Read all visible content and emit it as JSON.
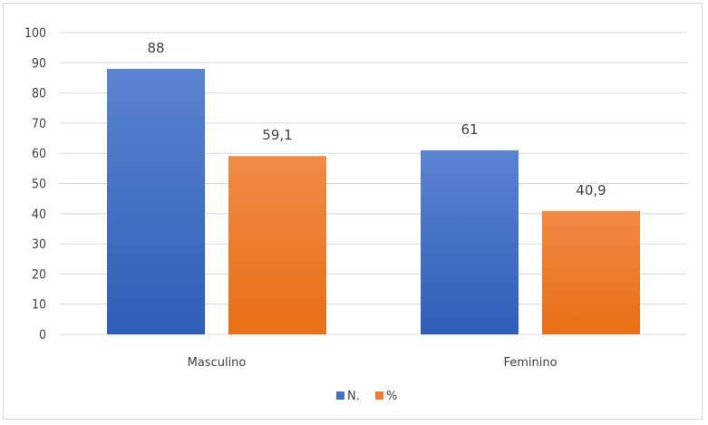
{
  "chart_data": {
    "type": "bar",
    "categories": [
      "Masculino",
      "Feminino"
    ],
    "series": [
      {
        "name": "N.",
        "values": [
          88,
          61
        ],
        "labels": [
          "88",
          "61"
        ],
        "color": "#4472c4"
      },
      {
        "name": "%",
        "values": [
          59.1,
          40.9
        ],
        "labels": [
          "59,1",
          "40,9"
        ],
        "color": "#ed7d31"
      }
    ],
    "yticks": [
      "0",
      "10",
      "20",
      "30",
      "40",
      "50",
      "60",
      "70",
      "80",
      "90",
      "100"
    ],
    "ylim": [
      0,
      100
    ],
    "grid": true,
    "legend_position": "bottom",
    "title": "",
    "xlabel": "",
    "ylabel": ""
  },
  "colors": {
    "grid": "#d9d9d9",
    "text": "#404040",
    "n_series": "#4472c4",
    "pct_series": "#ed7d31"
  }
}
